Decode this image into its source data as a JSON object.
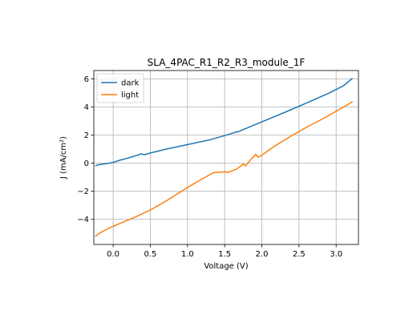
{
  "chart_data": {
    "type": "line",
    "title": "SLA_4PAC_R1_R2_R3_module_1F",
    "xlabel": "Voltage (V)",
    "ylabel": "J (mA/cm²)",
    "xlim": [
      -0.26,
      3.3
    ],
    "ylim": [
      -5.8,
      6.6
    ],
    "xticks": [
      0.0,
      0.5,
      1.0,
      1.5,
      2.0,
      2.5,
      3.0
    ],
    "xtick_labels": [
      "0.0",
      "0.5",
      "1.0",
      "1.5",
      "2.0",
      "2.5",
      "3.0"
    ],
    "yticks": [
      -4,
      -2,
      0,
      2,
      4,
      6
    ],
    "ytick_labels": [
      "−4",
      "−2",
      "0",
      "2",
      "4",
      "6"
    ],
    "grid": true,
    "legend_placement": "upper-left",
    "series": [
      {
        "name": "dark",
        "color": "#1f77b4",
        "x": [
          -0.24,
          -0.2,
          -0.15,
          -0.1,
          0.0,
          0.1,
          0.2,
          0.3,
          0.38,
          0.42,
          0.5,
          0.7,
          1.0,
          1.3,
          1.5,
          1.7,
          2.0,
          2.3,
          2.6,
          2.9,
          3.1,
          3.22
        ],
        "y": [
          -0.2,
          -0.12,
          -0.08,
          -0.05,
          0.05,
          0.22,
          0.36,
          0.52,
          0.66,
          0.6,
          0.72,
          0.98,
          1.32,
          1.66,
          1.96,
          2.28,
          2.94,
          3.6,
          4.28,
          4.98,
          5.52,
          6.05
        ]
      },
      {
        "name": "light",
        "color": "#ff7f0e",
        "x": [
          -0.24,
          -0.2,
          -0.15,
          -0.1,
          0.0,
          0.1,
          0.3,
          0.5,
          0.7,
          1.0,
          1.2,
          1.35,
          1.45,
          1.5,
          1.55,
          1.6,
          1.65,
          1.7,
          1.75,
          1.78,
          1.82,
          1.88,
          1.92,
          1.95,
          2.0,
          2.1,
          2.2,
          2.4,
          2.6,
          2.8,
          3.0,
          3.15,
          3.22
        ],
        "y": [
          -5.25,
          -5.05,
          -4.9,
          -4.75,
          -4.5,
          -4.28,
          -3.84,
          -3.34,
          -2.74,
          -1.74,
          -1.12,
          -0.68,
          -0.64,
          -0.62,
          -0.66,
          -0.54,
          -0.46,
          -0.28,
          -0.06,
          -0.2,
          0.05,
          0.42,
          0.62,
          0.42,
          0.55,
          0.95,
          1.3,
          1.95,
          2.55,
          3.1,
          3.7,
          4.15,
          4.38
        ]
      }
    ]
  }
}
